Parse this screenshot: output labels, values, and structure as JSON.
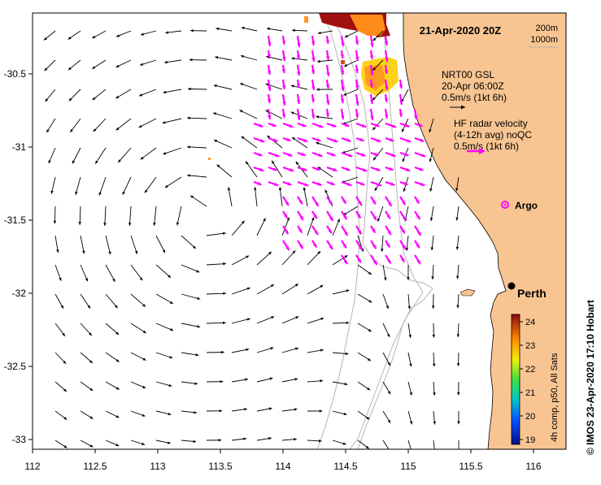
{
  "map": {
    "date_label": "21-Apr-2020 20Z",
    "legend_isobath": [
      "200m",
      "1000m"
    ],
    "gsl_legend": [
      "NRT00 GSL",
      "20-Apr 06:00Z",
      "0.5m/s (1kt 6h)"
    ],
    "hf_legend": [
      "HF radar velocity",
      "(4-12h avg) noQC",
      "0.5m/s (1kt 6h)"
    ],
    "argo_label": "Argo",
    "city_label": "Perth",
    "credit": "© IMOS 23-Apr-2020 17:10 Hobart",
    "colorbar_title": "4h comp, p50, All Sats",
    "colorbar_ticks": [
      "24",
      "23",
      "22",
      "21",
      "20",
      "19"
    ],
    "x_ticks": [
      "112",
      "112.5",
      "113",
      "113.5",
      "114",
      "114.5",
      "115",
      "115.5",
      "116"
    ],
    "y_ticks": [
      "-30.5",
      "-31",
      "-31.5",
      "-32",
      "-32.5",
      "-33"
    ],
    "colors": {
      "land": "#f8c592",
      "radar_arrow": "#ff00ff",
      "gsl_arrow": "#000000",
      "isobath": "#b4b4b4"
    }
  }
}
